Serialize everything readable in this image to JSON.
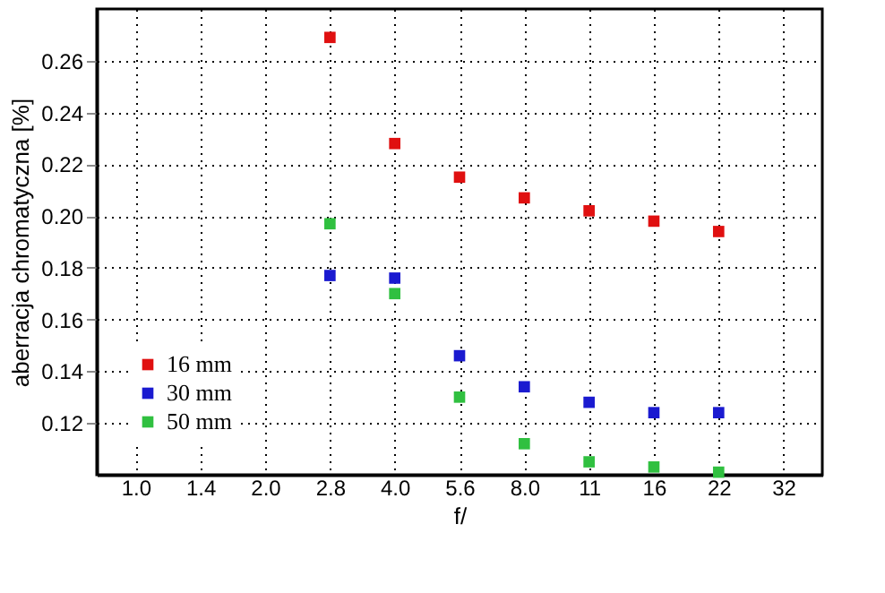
{
  "chart_data": {
    "type": "scatter",
    "xlabel": "f/",
    "ylabel": "aberracja chromatyczna [%]",
    "categories": [
      "1.0",
      "1.4",
      "2.0",
      "2.8",
      "4.0",
      "5.6",
      "8.0",
      "11",
      "16",
      "22",
      "32"
    ],
    "series": [
      {
        "name": "16 mm",
        "color": "#e01010",
        "values": [
          null,
          null,
          null,
          0.269,
          0.228,
          0.215,
          0.207,
          0.202,
          0.198,
          0.194,
          null
        ]
      },
      {
        "name": "30 mm",
        "color": "#1a1ad0",
        "values": [
          null,
          null,
          null,
          0.177,
          0.176,
          0.146,
          0.134,
          0.128,
          0.124,
          0.124,
          null
        ]
      },
      {
        "name": "50 mm",
        "color": "#30c040",
        "values": [
          null,
          null,
          null,
          0.197,
          0.17,
          0.13,
          0.112,
          0.105,
          0.103,
          0.101,
          null
        ]
      }
    ],
    "ylim": [
      0.1,
      0.28
    ],
    "yticks": [
      0.12,
      0.14,
      0.16,
      0.18,
      {
        "value": 0.2,
        "label": "0.20"
      },
      0.22,
      0.24,
      0.26
    ],
    "grid": true,
    "legend": "bottom left",
    "marker": "square"
  }
}
